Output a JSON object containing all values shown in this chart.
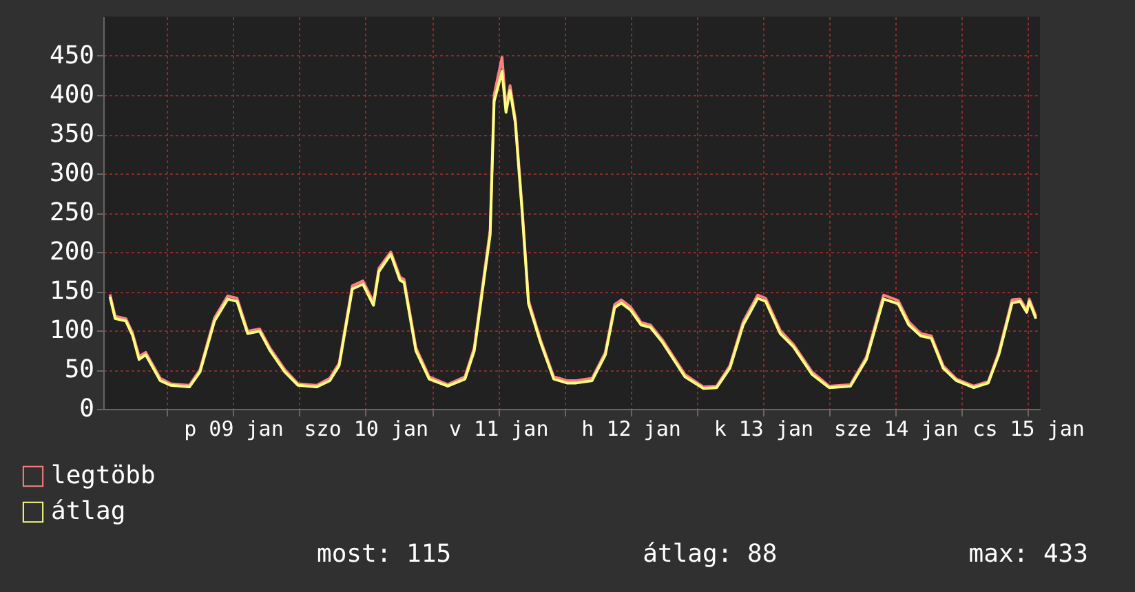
{
  "chart_data": {
    "type": "line",
    "xlim": [
      "--01-08T12:29",
      "--01-15T14:10"
    ],
    "ylim": [
      0,
      500
    ],
    "yticks": [
      0,
      50,
      100,
      150,
      200,
      250,
      300,
      350,
      400,
      450
    ],
    "xticks": [
      {
        "value": "--01-09T00:00",
        "label": null
      },
      {
        "value": "--01-09T12:00",
        "label": "p 09 jan"
      },
      {
        "value": "--01-10T00:00",
        "label": null
      },
      {
        "value": "--01-10T12:00",
        "label": "szo 10 jan"
      },
      {
        "value": "--01-11T00:00",
        "label": null
      },
      {
        "value": "--01-11T12:00",
        "label": "v 11 jan"
      },
      {
        "value": "--01-12T00:00",
        "label": null
      },
      {
        "value": "--01-12T12:00",
        "label": "h 12 jan"
      },
      {
        "value": "--01-13T00:00",
        "label": null
      },
      {
        "value": "--01-13T12:00",
        "label": "k 13 jan"
      },
      {
        "value": "--01-14T00:00",
        "label": null
      },
      {
        "value": "--01-14T12:00",
        "label": "sze 14 jan"
      },
      {
        "value": "--01-15T00:00",
        "label": null
      },
      {
        "value": "--01-15T12:00",
        "label": "cs 15 jan"
      }
    ],
    "x": [
      "--01-08T13:41",
      "--01-08T14:38",
      "--01-08T16:34",
      "--01-08T17:46",
      "--01-08T18:58",
      "--01-08T20:10",
      "--01-08T22:48",
      "--01-09T00:43",
      "--01-09T04:05",
      "--01-09T06:00",
      "--01-09T08:38",
      "--01-09T11:02",
      "--01-09T12:43",
      "--01-09T14:38",
      "--01-09T16:48",
      "--01-09T18:43",
      "--01-09T21:22",
      "--01-09T23:46",
      "--01-10T03:07",
      "--01-10T05:31",
      "--01-10T07:12",
      "--01-10T09:36",
      "--01-10T11:31",
      "--01-10T13:26",
      "--01-10T14:24",
      "--01-10T16:34",
      "--01-10T18:14",
      "--01-10T18:58",
      "--01-10T21:07",
      "--01-10T23:31",
      "--01-11T02:53",
      "--01-11T06:00",
      "--01-11T07:41",
      "--01-11T09:22",
      "--01-11T10:34",
      "--01-11T11:17",
      "--01-11T12:43",
      "--01-11T13:26",
      "--01-11T14:10",
      "--01-11T15:07",
      "--01-11T16:19",
      "--01-11T17:31",
      "--01-11T19:41",
      "--01-11T22:05",
      "--01-12T00:29",
      "--01-12T02:10",
      "--01-12T05:02",
      "--01-12T07:26",
      "--01-12T09:07",
      "--01-12T10:19",
      "--01-12T12:00",
      "--01-12T13:55",
      "--01-12T15:36",
      "--01-12T17:46",
      "--01-12T21:50",
      "--01-13T01:12",
      "--01-13T03:36",
      "--01-13T06:00",
      "--01-13T08:24",
      "--01-13T11:02",
      "--01-13T12:29",
      "--01-13T15:07",
      "--01-13T17:31",
      "--01-13T20:53",
      "--01-14T00:00",
      "--01-14T03:50",
      "--01-14T06:43",
      "--01-14T09:50",
      "--01-14T12:29",
      "--01-14T14:24",
      "--01-14T16:34",
      "--01-14T18:29",
      "--01-14T20:38",
      "--01-14T23:02",
      "--01-15T02:10",
      "--01-15T04:48",
      "--01-15T06:43",
      "--01-15T09:07",
      "--01-15T10:34",
      "--01-15T11:46",
      "--01-15T12:14",
      "--01-15T13:26"
    ],
    "series": [
      {
        "name": "legtöbb",
        "color": "#ff7f7f",
        "values": [
          146,
          118,
          115,
          97,
          67,
          72,
          39,
          32,
          30,
          50,
          116,
          144,
          141,
          99,
          102,
          77,
          50,
          32,
          30,
          39,
          58,
          157,
          163,
          136,
          179,
          200,
          168,
          165,
          78,
          41,
          31,
          41,
          78,
          166,
          228,
          400,
          448,
          385,
          412,
          370,
          260,
          138,
          88,
          41,
          36,
          36,
          39,
          72,
          133,
          139,
          130,
          110,
          107,
          88,
          44,
          28,
          29,
          55,
          111,
          145,
          141,
          100,
          82,
          47,
          29,
          31,
          66,
          145,
          138,
          111,
          96,
          93,
          55,
          38,
          29,
          35,
          72,
          139,
          140,
          126,
          140,
          118
        ]
      },
      {
        "name": "átlag",
        "color": "#ffff7f",
        "values": [
          143,
          115,
          112,
          94,
          63,
          69,
          36,
          30,
          28,
          47,
          112,
          140,
          137,
          96,
          99,
          74,
          47,
          30,
          28,
          36,
          55,
          153,
          159,
          132,
          175,
          197,
          164,
          161,
          74,
          38,
          29,
          38,
          74,
          161,
          222,
          392,
          430,
          378,
          406,
          365,
          255,
          134,
          85,
          38,
          33,
          33,
          36,
          69,
          129,
          135,
          126,
          107,
          104,
          85,
          41,
          26,
          27,
          52,
          107,
          141,
          137,
          96,
          79,
          44,
          27,
          29,
          63,
          140,
          134,
          107,
          93,
          90,
          52,
          36,
          27,
          33,
          69,
          135,
          137,
          123,
          137,
          115
        ]
      }
    ],
    "grid": true,
    "legend": "bottom left",
    "annotations": [
      "most: 115",
      "átlag: 88",
      "max: 433"
    ]
  }
}
